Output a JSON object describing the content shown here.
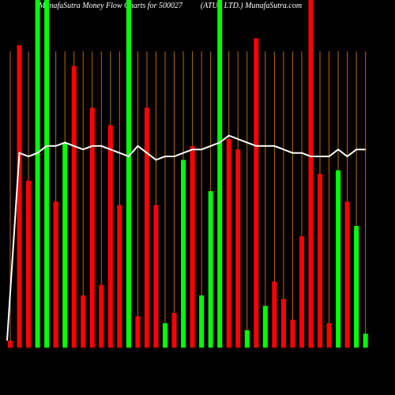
{
  "chart_data": {
    "type": "bar",
    "title": "MunafaSutra Money Flow Charts for 500027",
    "subtitle": "(ATUL LTD.) MunafaSutra.com",
    "values": [
      2,
      87,
      48,
      100,
      100,
      42,
      59,
      81,
      15,
      69,
      18,
      64,
      41,
      100,
      9,
      69,
      41,
      7,
      10,
      54,
      58,
      15,
      45,
      100,
      60,
      57,
      5,
      89,
      12,
      19,
      14,
      8,
      32,
      100,
      50,
      7,
      51,
      42,
      35,
      4
    ],
    "bar_colors": [
      "#ff0000",
      "#ff0000",
      "#ff0000",
      "#00ff00",
      "#00ff00",
      "#ff0000",
      "#00ff00",
      "#ff0000",
      "#ff0000",
      "#ff0000",
      "#ff0000",
      "#ff0000",
      "#ff0000",
      "#00ff00",
      "#ff0000",
      "#ff0000",
      "#ff0000",
      "#00ff00",
      "#ff0000",
      "#00ff00",
      "#ff0000",
      "#00ff00",
      "#00ff00",
      "#00ff00",
      "#ff0000",
      "#ff0000",
      "#00ff00",
      "#ff0000",
      "#00ff00",
      "#ff0000",
      "#ff0000",
      "#ff0000",
      "#ff0000",
      "#ff0000",
      "#ff0000",
      "#ff0000",
      "#00ff00",
      "#ff0000",
      "#00ff00",
      "#00ff00"
    ],
    "line_values": [
      2,
      56,
      55,
      56,
      58,
      58,
      59,
      58,
      57,
      58,
      58,
      57,
      56,
      55,
      58,
      56,
      54,
      55,
      55,
      56,
      57,
      57,
      58,
      59,
      61,
      60,
      59,
      58,
      58,
      58,
      57,
      56,
      56,
      55,
      55,
      55,
      57,
      55,
      57,
      57
    ],
    "line_color": "#ffffff",
    "ylim": [
      0,
      100
    ]
  }
}
